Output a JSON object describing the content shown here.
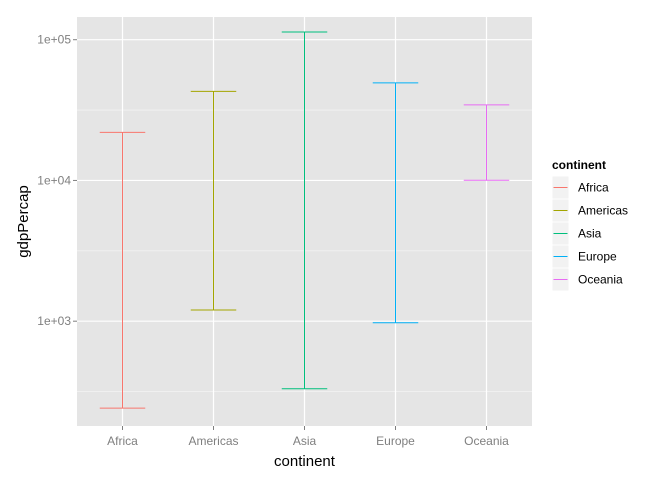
{
  "chart_data": {
    "type": "errorbar",
    "categories": [
      "Africa",
      "Americas",
      "Asia",
      "Europe",
      "Oceania"
    ],
    "series": [
      {
        "name": "Africa",
        "min": 241,
        "max": 21951,
        "color": "#f8766d"
      },
      {
        "name": "Americas",
        "min": 1202,
        "max": 42952,
        "color": "#a3a500"
      },
      {
        "name": "Asia",
        "min": 331,
        "max": 113523,
        "color": "#00bf7d"
      },
      {
        "name": "Europe",
        "min": 974,
        "max": 49357,
        "color": "#00b0f6"
      },
      {
        "name": "Oceania",
        "min": 10040,
        "max": 34435,
        "color": "#e76bf3"
      }
    ],
    "xlabel": "continent",
    "ylabel": "gdpPercap",
    "yscale": "log10",
    "ylim": [
      180,
      145000
    ],
    "yticks": [
      1000,
      10000,
      100000
    ],
    "ytick_labels": [
      "1e+03",
      "1e+04",
      "1e+05"
    ],
    "grid": true,
    "legend": {
      "title": "continent",
      "position": "right",
      "entries": [
        "Africa",
        "Americas",
        "Asia",
        "Europe",
        "Oceania"
      ]
    }
  }
}
